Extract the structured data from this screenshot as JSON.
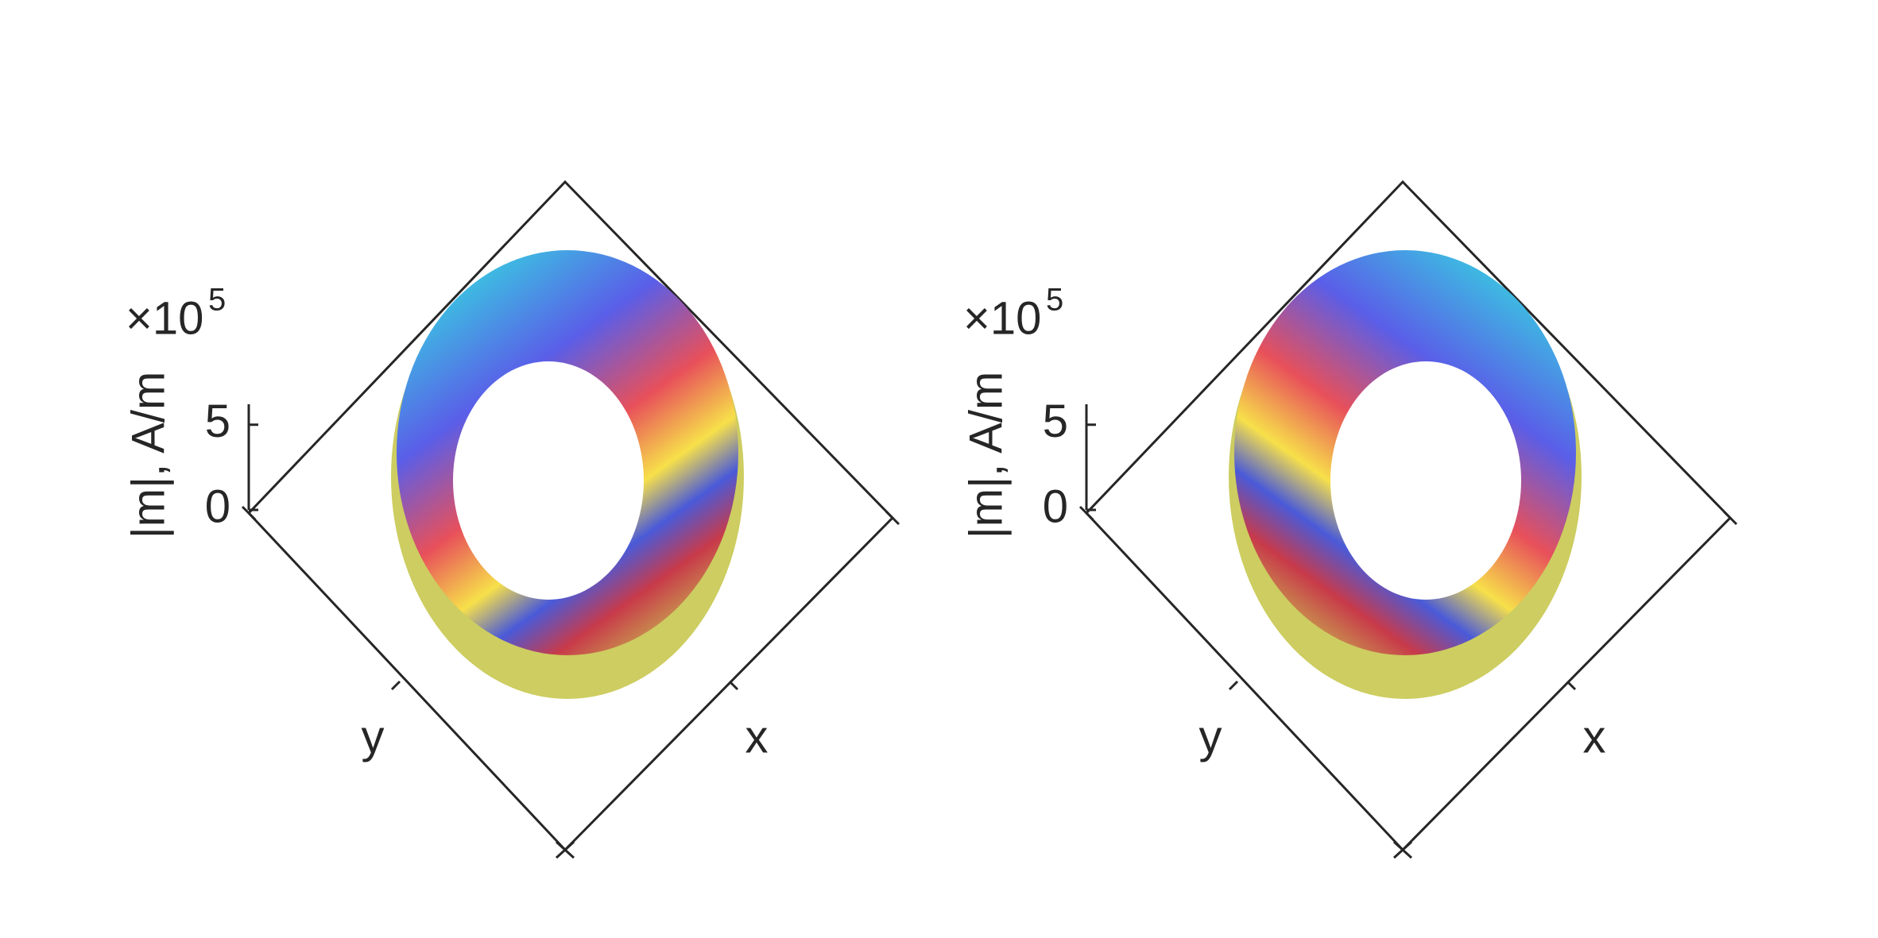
{
  "chart_data": [
    {
      "type": "surface",
      "zlabel": "|m|, A/m",
      "xlabel": "x",
      "ylabel": "y",
      "z_multiplier": "×10",
      "z_exponent": 5,
      "zlim": [
        0,
        6.2
      ],
      "zticks": [
        0,
        5
      ]
    },
    {
      "type": "surface",
      "zlabel": "|m|, A/m",
      "xlabel": "x",
      "ylabel": "y",
      "z_multiplier": "×10",
      "z_exponent": 5,
      "zlim": [
        0,
        6.2
      ],
      "zticks": [
        0,
        5
      ]
    }
  ]
}
